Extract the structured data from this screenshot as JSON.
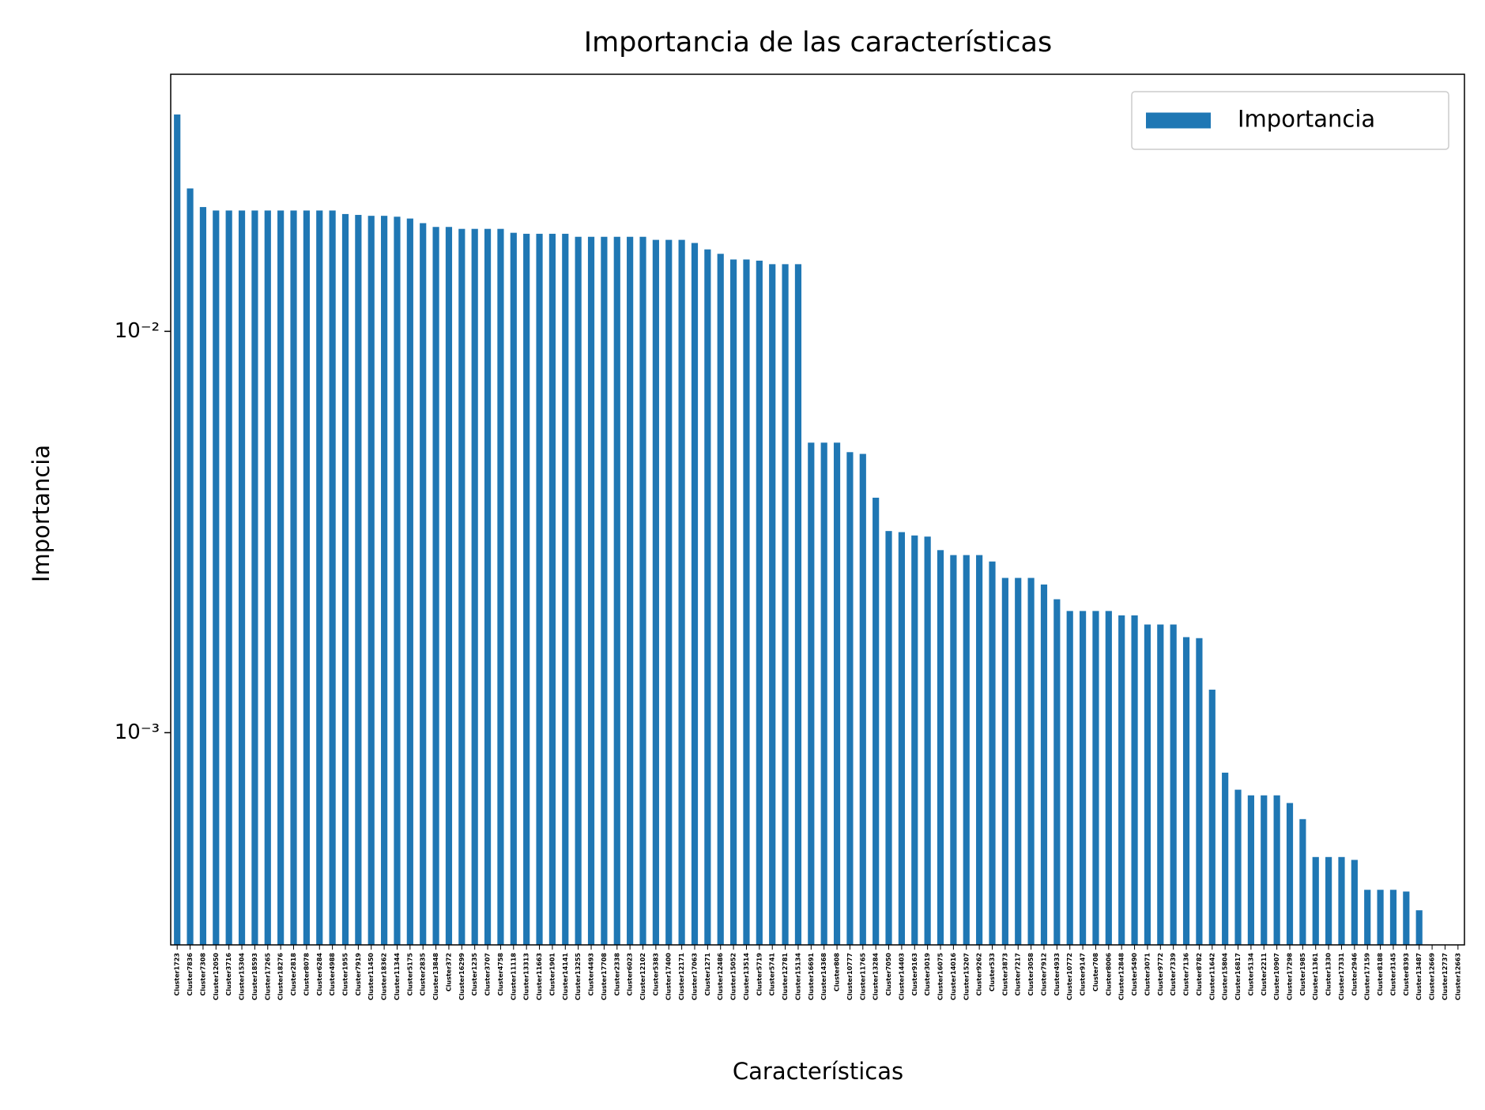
{
  "chart_data": {
    "type": "bar",
    "title": "Importancia de las características",
    "xlabel": "Características",
    "ylabel": "Importancia",
    "log_y": true,
    "legend_position": "upper right",
    "ylim": [
      0.000296,
      0.0437
    ],
    "yticks": [
      {
        "value": 0.001,
        "label": "10⁻³"
      },
      {
        "value": 0.01,
        "label": "10⁻²"
      }
    ],
    "categories": [
      "Cluster1723",
      "Cluster7836",
      "Cluster7308",
      "Cluster12050",
      "Cluster3716",
      "Cluster15304",
      "Cluster18593",
      "Cluster17265",
      "Cluster18276",
      "Cluster2818",
      "Cluster8078",
      "Cluster6284",
      "Cluster4988",
      "Cluster1955",
      "Cluster7919",
      "Cluster11450",
      "Cluster18362",
      "Cluster11344",
      "Cluster5175",
      "Cluster2835",
      "Cluster13848",
      "Cluster372",
      "Cluster16299",
      "Cluster1235",
      "Cluster3707",
      "Cluster4758",
      "Cluster11118",
      "Cluster13313",
      "Cluster11663",
      "Cluster1901",
      "Cluster14141",
      "Cluster13255",
      "Cluster4493",
      "Cluster17708",
      "Cluster2338",
      "Cluster6023",
      "Cluster12102",
      "Cluster5383",
      "Cluster17400",
      "Cluster12171",
      "Cluster17063",
      "Cluster1271",
      "Cluster12486",
      "Cluster15052",
      "Cluster13514",
      "Cluster5719",
      "Cluster5741",
      "Cluster12781",
      "Cluster15134",
      "Cluster16691",
      "Cluster14368",
      "Cluster808",
      "Cluster10777",
      "Cluster11765",
      "Cluster13284",
      "Cluster7050",
      "Cluster14403",
      "Cluster9163",
      "Cluster3019",
      "Cluster16075",
      "Cluster14016",
      "Cluster15207",
      "Cluster9262",
      "Cluster533",
      "Cluster3873",
      "Cluster7217",
      "Cluster3058",
      "Cluster7912",
      "Cluster4933",
      "Cluster10772",
      "Cluster9147",
      "Cluster708",
      "Cluster8006",
      "Cluster12848",
      "Cluster5490",
      "Cluster3071",
      "Cluster9772",
      "Cluster7339",
      "Cluster7136",
      "Cluster8782",
      "Cluster11642",
      "Cluster15804",
      "Cluster16817",
      "Cluster5134",
      "Cluster2211",
      "Cluster10907",
      "Cluster17298",
      "Cluster1985",
      "Cluster11361",
      "Cluster1330",
      "Cluster17331",
      "Cluster2946",
      "Cluster17159",
      "Cluster8188",
      "Cluster3145",
      "Cluster8393",
      "Cluster13487",
      "Cluster12669",
      "Cluster12737",
      "Cluster12663"
    ],
    "series": [
      {
        "name": "Importancia",
        "color": "#1f77b4",
        "values": [
          0.0347,
          0.0227,
          0.0204,
          0.02,
          0.02,
          0.02,
          0.02,
          0.02,
          0.02,
          0.02,
          0.02,
          0.02,
          0.02,
          0.0196,
          0.0195,
          0.0194,
          0.0194,
          0.0193,
          0.0191,
          0.0186,
          0.0182,
          0.0182,
          0.018,
          0.018,
          0.018,
          0.018,
          0.0176,
          0.0175,
          0.0175,
          0.0175,
          0.0175,
          0.0172,
          0.0172,
          0.0172,
          0.0172,
          0.0172,
          0.0172,
          0.0169,
          0.0169,
          0.0169,
          0.0166,
          0.016,
          0.0156,
          0.0151,
          0.0151,
          0.015,
          0.0147,
          0.0147,
          0.0147,
          0.00528,
          0.00528,
          0.00528,
          0.005,
          0.00495,
          0.00385,
          0.00318,
          0.00316,
          0.0031,
          0.00308,
          0.00285,
          0.00277,
          0.00277,
          0.00277,
          0.00267,
          0.00243,
          0.00243,
          0.00243,
          0.00234,
          0.00215,
          0.00201,
          0.00201,
          0.00201,
          0.00201,
          0.00196,
          0.00196,
          0.00186,
          0.00186,
          0.00186,
          0.00173,
          0.00172,
          0.00128,
          0.000795,
          0.000721,
          0.000698,
          0.000698,
          0.000698,
          0.000668,
          0.000609,
          0.00049,
          0.00049,
          0.00049,
          0.000482,
          0.000406,
          0.000406,
          0.000406,
          0.000402,
          0.000361,
          0,
          0,
          0
        ]
      }
    ]
  }
}
